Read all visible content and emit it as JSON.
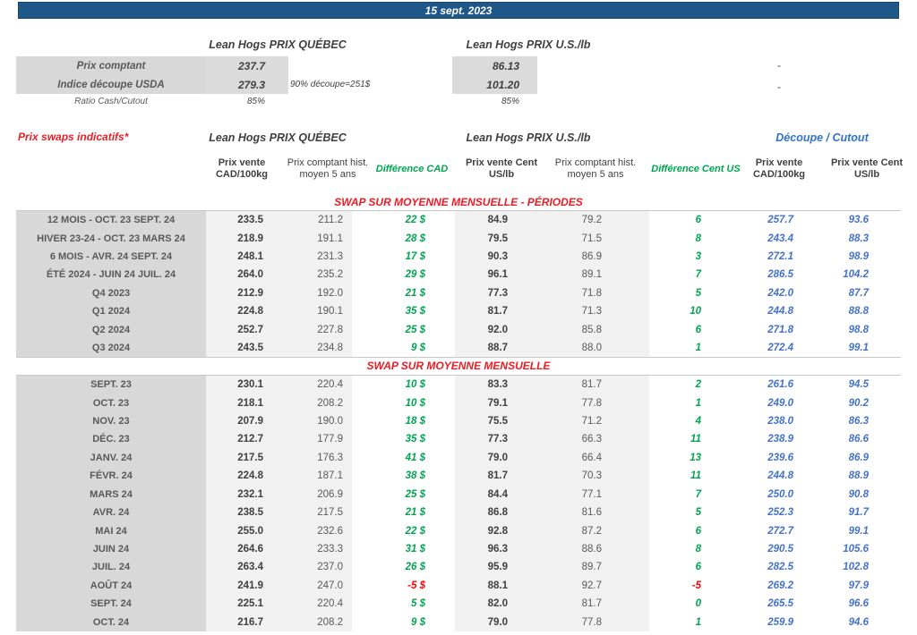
{
  "date_banner": "15 sept. 2023",
  "colors": {
    "banner_blue": "#1E5788",
    "positive_green": "#00A550",
    "negative_red": "#FF0000",
    "title_red": "#ED1C24",
    "cutout_blue": "#4472C4",
    "header_blue": "#2E74CC",
    "label_gray_bg": "#D8D8D8",
    "band_gray_bg": "#F1F1F1"
  },
  "top": {
    "quebec_header": "Lean Hogs PRIX QUÉBEC",
    "us_header": "Lean Hogs PRIX U.S./lb",
    "rows": [
      {
        "label": "Prix comptant",
        "quebec": "237.7",
        "us": "86.13",
        "dash": "-"
      },
      {
        "label": "Indice découpe USDA",
        "quebec": "279.3",
        "note": "90% découpe=251$",
        "us": "101.20",
        "dash": "-"
      },
      {
        "label": "Ratio Cash/Cutout",
        "quebec": "85%",
        "us": "85%"
      }
    ]
  },
  "swap": {
    "title": "Prix swaps indicatifs*",
    "quebec_header": "Lean Hogs PRIX QUÉBEC",
    "us_header": "Lean Hogs PRIX U.S./lb",
    "cutout_header": "Découpe / Cutout",
    "col_headers": [
      "Prix vente CAD/100kg",
      "Prix comptant hist. moyen 5 ans",
      "Différence CAD",
      "Prix vente Cent US/lb",
      "Prix comptant hist. moyen 5 ans",
      "Différence Cent US",
      "Prix vente CAD/100kg",
      "Prix vente Cent US/lb"
    ],
    "sections": [
      {
        "title": "SWAP SUR MOYENNE MENSUELLE - PÉRIODES",
        "rows": [
          [
            "12 MOIS - OCT. 23 SEPT. 24",
            "233.5",
            "211.2",
            "22 $",
            "84.9",
            "79.2",
            "6",
            "257.7",
            "93.6"
          ],
          [
            "HIVER 23-24 -  OCT. 23 MARS 24",
            "218.9",
            "191.1",
            "28 $",
            "79.5",
            "71.5",
            "8",
            "243.4",
            "88.3"
          ],
          [
            "6 MOIS -  AVR. 24 SEPT. 24",
            "248.1",
            "231.3",
            "17 $",
            "90.3",
            "86.9",
            "3",
            "272.1",
            "98.9"
          ],
          [
            "ÉTÉ 2024 - JUIN 24 JUIL. 24",
            "264.0",
            "235.2",
            "29 $",
            "96.1",
            "89.1",
            "7",
            "286.5",
            "104.2"
          ],
          [
            "Q4 2023",
            "212.9",
            "192.0",
            "21 $",
            "77.3",
            "71.8",
            "5",
            "242.0",
            "87.7"
          ],
          [
            "Q1 2024",
            "224.8",
            "190.1",
            "35 $",
            "81.7",
            "71.3",
            "10",
            "244.8",
            "88.8"
          ],
          [
            "Q2 2024",
            "252.7",
            "227.8",
            "25 $",
            "92.0",
            "85.8",
            "6",
            "271.8",
            "98.8"
          ],
          [
            "Q3 2024",
            "243.5",
            "234.8",
            "9 $",
            "88.7",
            "88.0",
            "1",
            "272.4",
            "99.1"
          ]
        ]
      },
      {
        "title": "SWAP SUR MOYENNE MENSUELLE",
        "rows": [
          [
            "SEPT. 23",
            "230.1",
            "220.4",
            "10 $",
            "83.3",
            "81.7",
            "2",
            "261.6",
            "94.5"
          ],
          [
            "OCT. 23",
            "218.1",
            "208.2",
            "10 $",
            "79.1",
            "77.8",
            "1",
            "249.0",
            "90.2"
          ],
          [
            "NOV. 23",
            "207.9",
            "190.0",
            "18 $",
            "75.5",
            "71.2",
            "4",
            "238.0",
            "86.3"
          ],
          [
            "DÉC. 23",
            "212.7",
            "177.9",
            "35 $",
            "77.3",
            "66.3",
            "11",
            "238.9",
            "86.6"
          ],
          [
            "JANV. 24",
            "217.5",
            "176.3",
            "41 $",
            "79.0",
            "66.4",
            "13",
            "239.6",
            "86.9"
          ],
          [
            "FÉVR. 24",
            "224.8",
            "187.1",
            "38 $",
            "81.7",
            "70.3",
            "11",
            "244.8",
            "88.9"
          ],
          [
            "MARS 24",
            "232.1",
            "206.9",
            "25 $",
            "84.4",
            "77.1",
            "7",
            "250.0",
            "90.8"
          ],
          [
            "AVR. 24",
            "238.5",
            "217.5",
            "21 $",
            "86.8",
            "81.6",
            "5",
            "252.3",
            "91.7"
          ],
          [
            "MAI 24",
            "255.0",
            "232.6",
            "22 $",
            "92.8",
            "87.2",
            "6",
            "272.7",
            "99.1"
          ],
          [
            "JUIN 24",
            "264.6",
            "233.3",
            "31 $",
            "96.3",
            "88.6",
            "8",
            "290.5",
            "105.6"
          ],
          [
            "JUIL. 24",
            "263.4",
            "237.0",
            "26 $",
            "95.9",
            "89.7",
            "6",
            "282.5",
            "102.8"
          ],
          [
            "AOÛT 24",
            "241.9",
            "247.0",
            "-5 $",
            "88.1",
            "92.7",
            "-5",
            "269.2",
            "97.9"
          ],
          [
            "SEPT. 24",
            "225.1",
            "220.4",
            "5 $",
            "82.0",
            "81.7",
            "0",
            "265.5",
            "96.6"
          ],
          [
            "OCT. 24",
            "216.7",
            "208.2",
            "9 $",
            "79.0",
            "77.8",
            "1",
            "259.9",
            "94.6"
          ]
        ]
      }
    ]
  }
}
